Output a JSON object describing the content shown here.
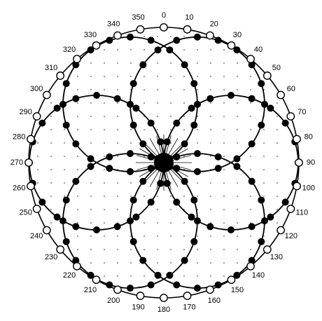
{
  "diagram": {
    "outer_ring": {
      "angles": [
        "0",
        "10",
        "20",
        "30",
        "40",
        "50",
        "60",
        "70",
        "80",
        "90",
        "100",
        "110",
        "120",
        "130",
        "140",
        "150",
        "160",
        "170",
        "180",
        "190",
        "200",
        "210",
        "220",
        "230",
        "240",
        "250",
        "260",
        "270",
        "280",
        "290",
        "300",
        "310",
        "320",
        "330",
        "340",
        "350"
      ],
      "marker": "open-circle"
    },
    "petal_circles": {
      "count": 6,
      "marker": "filled-circle",
      "points_per_circle": 20
    },
    "colors": {
      "line": "#000000",
      "open_fill": "#ffffff",
      "filled": "#000000",
      "grid_dots": "#555555"
    }
  }
}
